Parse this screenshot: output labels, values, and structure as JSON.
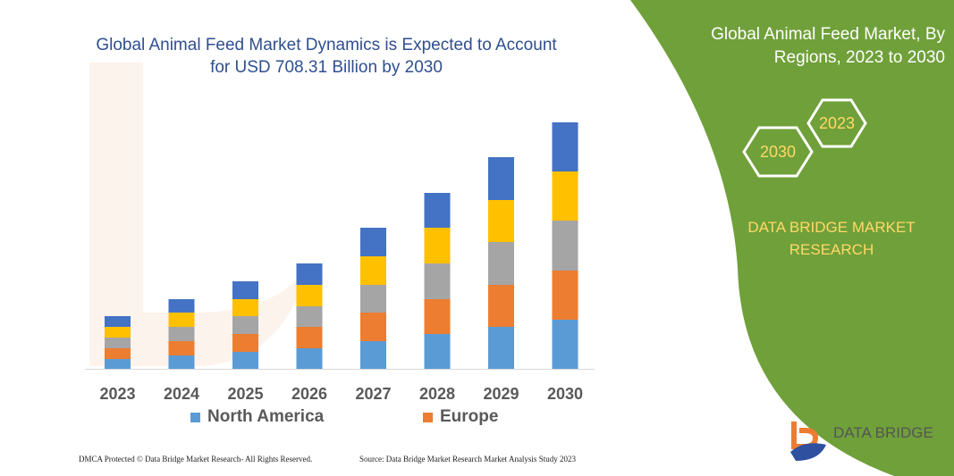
{
  "title": "Global Animal Feed Market Dynamics is Expected to Account for USD 708.31 Billion by 2030",
  "side_panel": {
    "title": "Global Animal Feed Market, By Regions, 2023 to 2030",
    "hex_labels": [
      "2023",
      "2030"
    ],
    "brand": "DATA BRIDGE MARKET RESEARCH",
    "logo_text": "DATA BRIDGE",
    "color": "#70a03a"
  },
  "footer": {
    "left": "DMCA Protected © Data Bridge Market Research- All Rights Reserved.",
    "right": "Source: Data Bridge Market Research Market Analysis Study 2023"
  },
  "chart_data": {
    "type": "bar",
    "stacked": true,
    "title": "",
    "xlabel": "",
    "ylabel": "",
    "grid": false,
    "legend_position": "bottom",
    "categories": [
      "2023",
      "2024",
      "2025",
      "2026",
      "2027",
      "2028",
      "2029",
      "2030"
    ],
    "series": [
      {
        "name": "North America",
        "color": "#5b9bd5",
        "values": [
          11,
          15,
          19,
          23,
          31,
          39,
          47,
          55
        ]
      },
      {
        "name": "Europe",
        "color": "#ed7d31",
        "values": [
          12,
          16,
          20,
          24,
          32,
          39,
          47,
          55
        ]
      },
      {
        "color": "#a5a5a5",
        "values": [
          12,
          16,
          20,
          23,
          31,
          40,
          48,
          56
        ]
      },
      {
        "color": "#ffc000",
        "values": [
          12,
          16,
          19,
          24,
          32,
          40,
          47,
          55
        ]
      },
      {
        "color": "#4472c4",
        "values": [
          12,
          15,
          20,
          24,
          32,
          39,
          48,
          55
        ]
      }
    ]
  }
}
